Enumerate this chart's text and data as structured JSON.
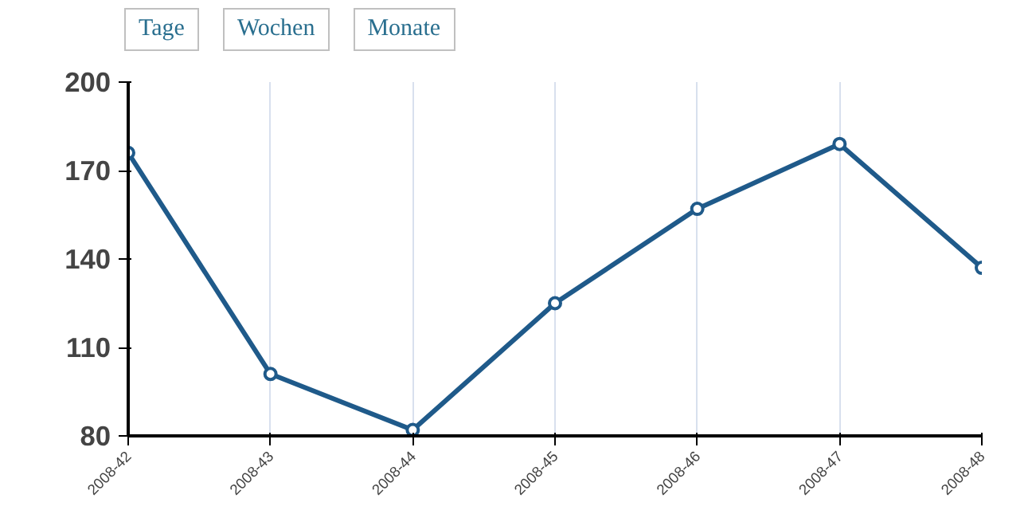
{
  "chart_data": {
    "type": "line",
    "categories": [
      "2008-42",
      "2008-43",
      "2008-44",
      "2008-45",
      "2008-46",
      "2008-47",
      "2008-48"
    ],
    "series": [
      {
        "color": "#1f5a8a",
        "values": [
          176,
          101,
          82,
          125,
          157,
          179,
          137
        ]
      }
    ],
    "ylim": [
      80,
      200
    ],
    "yticks": [
      80,
      110,
      140,
      170,
      200
    ],
    "grid": "x",
    "marker": "circle",
    "line_style": "solid",
    "annotations": [
      "Tage",
      "Wochen",
      "Monate"
    ]
  }
}
